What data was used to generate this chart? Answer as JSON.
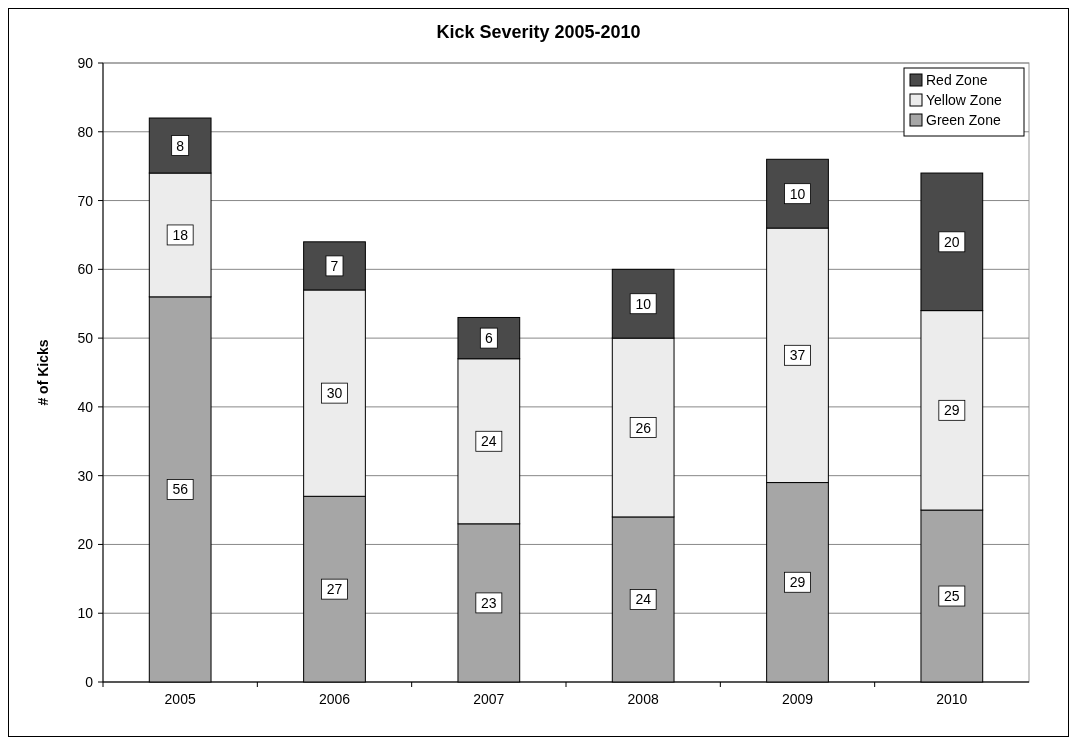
{
  "chart_data": {
    "type": "bar",
    "title": "Kick Severity 2005-2010",
    "ylabel": "# of Kicks",
    "categories": [
      "2005",
      "2006",
      "2007",
      "2008",
      "2009",
      "2010"
    ],
    "stacked": true,
    "series": [
      {
        "name": "Green Zone",
        "color": "#a6a6a6",
        "values": [
          56,
          27,
          23,
          24,
          29,
          25
        ]
      },
      {
        "name": "Yellow Zone",
        "color": "#ececec",
        "values": [
          18,
          30,
          24,
          26,
          37,
          29
        ]
      },
      {
        "name": "Red Zone",
        "color": "#4a4a4a",
        "values": [
          8,
          7,
          6,
          10,
          10,
          20
        ]
      }
    ],
    "ylim": [
      0,
      90
    ],
    "yticks": [
      0,
      10,
      20,
      30,
      40,
      50,
      60,
      70,
      80,
      90
    ],
    "grid": "y",
    "legend": "top right",
    "data_labels": true
  }
}
